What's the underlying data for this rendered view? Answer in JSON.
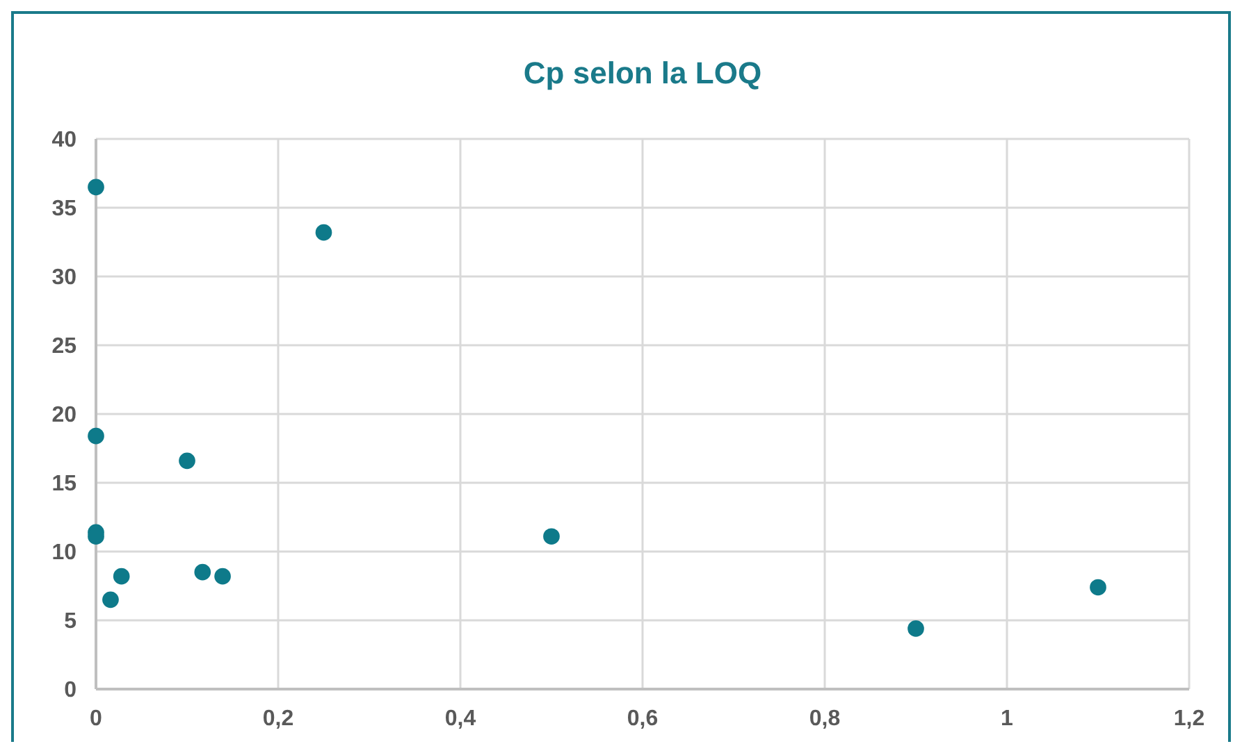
{
  "chart_data": {
    "type": "scatter",
    "title": "Cp selon la LOQ",
    "x": [
      0,
      0.25,
      0,
      0.1,
      0,
      0,
      0.028,
      0.016,
      0.117,
      0.139,
      0.5,
      0.9,
      1.1
    ],
    "values": [
      36.5,
      33.2,
      18.4,
      16.6,
      11.4,
      11.1,
      8.2,
      6.5,
      8.5,
      8.2,
      11.1,
      4.4,
      7.4
    ],
    "color": "#0e7a8a",
    "marker": "circle",
    "grid": true,
    "xlim": [
      0,
      1.2
    ],
    "xticks": [
      {
        "value": 0,
        "label": "0"
      },
      {
        "value": 0.2,
        "label": "0,2"
      },
      {
        "value": 0.4,
        "label": "0,4"
      },
      {
        "value": 0.6,
        "label": "0,6"
      },
      {
        "value": 0.8,
        "label": "0,8"
      },
      {
        "value": 1,
        "label": "1"
      },
      {
        "value": 1.2,
        "label": "1,2"
      }
    ],
    "ylim": [
      0,
      40
    ],
    "yticks": [
      0,
      5,
      10,
      15,
      20,
      25,
      30,
      35,
      40
    ]
  }
}
